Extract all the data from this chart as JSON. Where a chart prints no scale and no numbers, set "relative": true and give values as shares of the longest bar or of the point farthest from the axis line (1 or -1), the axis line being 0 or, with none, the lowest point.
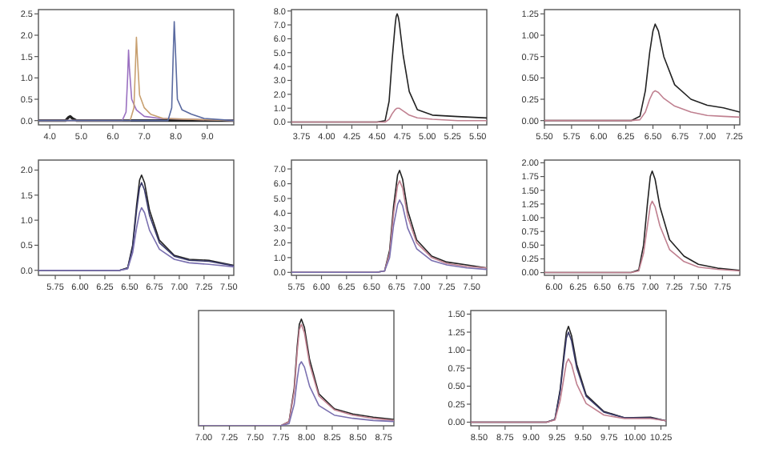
{
  "chart_data": [
    {
      "type": "line",
      "xlim": [
        3.64,
        9.84
      ],
      "xticks": [
        {
          "value": 4,
          "label": "4.0"
        },
        {
          "value": 5,
          "label": "5.0"
        },
        {
          "value": 6,
          "label": "6.0"
        },
        {
          "value": 7,
          "label": "7.0"
        },
        {
          "value": 8,
          "label": "8.0"
        },
        {
          "value": 9,
          "label": "9.0"
        }
      ],
      "ylim": [
        -0.1,
        2.6
      ],
      "yticks": [
        {
          "value": 0,
          "label": "0.0"
        },
        0.5,
        {
          "value": 1,
          "label": "1.0"
        },
        1.5,
        {
          "value": 2,
          "label": "2.0"
        },
        2.5
      ],
      "series": [
        {
          "color": "#222222",
          "x": [
            3.64,
            4.5,
            4.6,
            4.65,
            4.72,
            4.85,
            9.84
          ],
          "values": [
            0,
            0,
            0.08,
            0.1,
            0.05,
            0,
            0
          ]
        },
        {
          "color": "#9a70c0",
          "x": [
            3.64,
            6.3,
            6.42,
            6.47,
            6.5,
            6.53,
            6.6,
            6.75,
            7.0,
            7.5,
            9.84
          ],
          "values": [
            0,
            0,
            0.2,
            1.0,
            1.65,
            1.2,
            0.5,
            0.25,
            0.1,
            0.05,
            0
          ]
        },
        {
          "color": "#c8a070",
          "x": [
            3.64,
            6.55,
            6.67,
            6.72,
            6.75,
            6.78,
            6.85,
            7.0,
            7.2,
            7.6,
            9.84
          ],
          "values": [
            0,
            0,
            0.3,
            1.3,
            1.95,
            1.5,
            0.6,
            0.3,
            0.15,
            0.05,
            0
          ]
        },
        {
          "color": "#5a6aa0",
          "x": [
            3.64,
            7.75,
            7.87,
            7.92,
            7.95,
            7.98,
            8.05,
            8.2,
            8.5,
            8.9,
            9.84
          ],
          "values": [
            0,
            0,
            0.3,
            1.6,
            2.32,
            1.8,
            0.5,
            0.25,
            0.15,
            0.05,
            0
          ]
        }
      ]
    },
    {
      "type": "line",
      "xlim": [
        3.65,
        5.59
      ],
      "xticks": [
        3.75,
        {
          "value": 4,
          "label": "4.00"
        },
        4.25,
        {
          "value": 4.5,
          "label": "4.50"
        },
        4.75,
        {
          "value": 5,
          "label": "5.00"
        },
        5.25,
        {
          "value": 5.5,
          "label": "5.50"
        }
      ],
      "ylim": [
        -0.2,
        8.1
      ],
      "yticks": [
        {
          "value": 0,
          "label": "0.0"
        },
        {
          "value": 1,
          "label": "1.0"
        },
        {
          "value": 2,
          "label": "2.0"
        },
        {
          "value": 3,
          "label": "3.0"
        },
        {
          "value": 4,
          "label": "4.0"
        },
        {
          "value": 5,
          "label": "5.0"
        },
        {
          "value": 6,
          "label": "6.0"
        },
        {
          "value": 7,
          "label": "7.0"
        },
        {
          "value": 8,
          "label": "8.0"
        }
      ],
      "series": [
        {
          "color": "#222222",
          "x": [
            3.65,
            4.5,
            4.58,
            4.62,
            4.65,
            4.68,
            4.69,
            4.7,
            4.71,
            4.72,
            4.76,
            4.82,
            4.9,
            5.05,
            5.3,
            5.59
          ],
          "values": [
            0,
            0,
            0.1,
            1.5,
            4.5,
            7.0,
            7.6,
            7.8,
            7.6,
            7.2,
            4.8,
            2.2,
            0.9,
            0.5,
            0.4,
            0.3
          ]
        },
        {
          "color": "#c08090",
          "x": [
            3.65,
            4.5,
            4.58,
            4.62,
            4.65,
            4.68,
            4.7,
            4.72,
            4.76,
            4.82,
            4.9,
            5.05,
            5.3,
            5.59
          ],
          "values": [
            0,
            0,
            0,
            0.2,
            0.6,
            0.9,
            1.0,
            1.0,
            0.8,
            0.5,
            0.3,
            0.2,
            0.1,
            0.1
          ]
        }
      ]
    },
    {
      "type": "line",
      "xlim": [
        5.5,
        7.3
      ],
      "xticks": [
        {
          "value": 5.5,
          "label": "5.50"
        },
        5.75,
        {
          "value": 6,
          "label": "6.00"
        },
        6.25,
        {
          "value": 6.5,
          "label": "6.50"
        },
        6.75,
        {
          "value": 7,
          "label": "7.00"
        },
        7.25
      ],
      "ylim": [
        -0.05,
        1.3
      ],
      "yticks": [
        {
          "value": 0,
          "label": "0.00"
        },
        0.25,
        {
          "value": 0.5,
          "label": "0.50"
        },
        0.75,
        {
          "value": 1,
          "label": "1.00"
        },
        1.25
      ],
      "series": [
        {
          "color": "#222222",
          "x": [
            5.5,
            6.3,
            6.38,
            6.43,
            6.47,
            6.5,
            6.52,
            6.55,
            6.6,
            6.7,
            6.85,
            7.0,
            7.15,
            7.3
          ],
          "values": [
            0,
            0,
            0.05,
            0.35,
            0.8,
            1.05,
            1.13,
            1.05,
            0.75,
            0.42,
            0.25,
            0.18,
            0.15,
            0.1
          ]
        },
        {
          "color": "#c08090",
          "x": [
            5.5,
            6.3,
            6.38,
            6.43,
            6.47,
            6.5,
            6.52,
            6.55,
            6.6,
            6.7,
            6.85,
            7.0,
            7.15,
            7.3
          ],
          "values": [
            0,
            0,
            0.01,
            0.1,
            0.25,
            0.33,
            0.35,
            0.33,
            0.26,
            0.17,
            0.1,
            0.06,
            0.05,
            0.04
          ]
        }
      ]
    },
    {
      "type": "line",
      "xlim": [
        5.58,
        7.55
      ],
      "xticks": [
        5.75,
        {
          "value": 6,
          "label": "6.00"
        },
        6.25,
        {
          "value": 6.5,
          "label": "6.50"
        },
        6.75,
        {
          "value": 7,
          "label": "7.00"
        },
        7.25,
        {
          "value": 7.5,
          "label": "7.50"
        }
      ],
      "ylim": [
        -0.1,
        2.2
      ],
      "yticks": [
        {
          "value": 0,
          "label": "0.0"
        },
        0.5,
        {
          "value": 1,
          "label": "1.0"
        },
        1.5,
        {
          "value": 2,
          "label": "2.0"
        }
      ],
      "series": [
        {
          "color": "#222222",
          "x": [
            5.58,
            6.4,
            6.48,
            6.53,
            6.57,
            6.6,
            6.62,
            6.65,
            6.7,
            6.8,
            6.95,
            7.1,
            7.3,
            7.55
          ],
          "values": [
            0,
            0,
            0.05,
            0.5,
            1.3,
            1.8,
            1.9,
            1.75,
            1.2,
            0.6,
            0.3,
            0.22,
            0.2,
            0.1
          ]
        },
        {
          "color": "#3a3a6a",
          "x": [
            5.58,
            6.4,
            6.48,
            6.53,
            6.57,
            6.6,
            6.62,
            6.65,
            6.7,
            6.8,
            6.95,
            7.1,
            7.3,
            7.55
          ],
          "values": [
            0,
            0,
            0.04,
            0.45,
            1.2,
            1.65,
            1.75,
            1.6,
            1.1,
            0.55,
            0.28,
            0.2,
            0.18,
            0.09
          ]
        },
        {
          "color": "#7a70b0",
          "x": [
            5.58,
            6.4,
            6.48,
            6.53,
            6.57,
            6.6,
            6.62,
            6.65,
            6.7,
            6.8,
            6.95,
            7.1,
            7.3,
            7.55
          ],
          "values": [
            0,
            0,
            0.03,
            0.35,
            0.85,
            1.15,
            1.25,
            1.15,
            0.8,
            0.42,
            0.22,
            0.15,
            0.12,
            0.07
          ]
        }
      ]
    },
    {
      "type": "line",
      "xlim": [
        5.7,
        7.65
      ],
      "xticks": [
        5.75,
        {
          "value": 6,
          "label": "6.00"
        },
        6.25,
        {
          "value": 6.5,
          "label": "6.50"
        },
        6.75,
        {
          "value": 7,
          "label": "7.00"
        },
        7.25,
        {
          "value": 7.5,
          "label": "7.50"
        }
      ],
      "ylim": [
        -0.2,
        7.6
      ],
      "yticks": [
        {
          "value": 0,
          "label": "0.0"
        },
        {
          "value": 1,
          "label": "1.0"
        },
        {
          "value": 2,
          "label": "2.0"
        },
        {
          "value": 3,
          "label": "3.0"
        },
        {
          "value": 4,
          "label": "4.0"
        },
        {
          "value": 5,
          "label": "5.0"
        },
        {
          "value": 6,
          "label": "6.0"
        },
        {
          "value": 7,
          "label": "7.0"
        }
      ],
      "series": [
        {
          "color": "#222222",
          "x": [
            5.7,
            6.55,
            6.63,
            6.68,
            6.72,
            6.76,
            6.78,
            6.81,
            6.86,
            6.95,
            7.1,
            7.25,
            7.45,
            7.65
          ],
          "values": [
            0,
            0,
            0.1,
            1.5,
            4.5,
            6.6,
            6.9,
            6.3,
            4.2,
            2.2,
            1.1,
            0.7,
            0.5,
            0.3
          ]
        },
        {
          "color": "#c08090",
          "x": [
            5.7,
            6.55,
            6.63,
            6.68,
            6.72,
            6.76,
            6.78,
            6.81,
            6.86,
            6.95,
            7.1,
            7.25,
            7.45,
            7.65
          ],
          "values": [
            0,
            0,
            0.1,
            1.3,
            4.0,
            5.9,
            6.2,
            5.7,
            3.8,
            2.0,
            1.0,
            0.6,
            0.4,
            0.3
          ]
        },
        {
          "color": "#7a70b0",
          "x": [
            5.7,
            6.55,
            6.63,
            6.68,
            6.72,
            6.76,
            6.78,
            6.81,
            6.86,
            6.95,
            7.1,
            7.25,
            7.45,
            7.65
          ],
          "values": [
            0,
            0,
            0.1,
            1.0,
            3.2,
            4.6,
            4.9,
            4.5,
            3.0,
            1.6,
            0.8,
            0.5,
            0.3,
            0.2
          ]
        }
      ]
    },
    {
      "type": "line",
      "xlim": [
        5.9,
        7.93
      ],
      "xticks": [
        {
          "value": 6,
          "label": "6.00"
        },
        6.25,
        {
          "value": 6.5,
          "label": "6.50"
        },
        6.75,
        {
          "value": 7,
          "label": "7.00"
        },
        7.25,
        {
          "value": 7.5,
          "label": "7.50"
        },
        7.75
      ],
      "ylim": [
        -0.05,
        2.05
      ],
      "yticks": [
        {
          "value": 0,
          "label": "0.00"
        },
        0.25,
        {
          "value": 0.5,
          "label": "0.50"
        },
        0.75,
        {
          "value": 1,
          "label": "1.00"
        },
        1.25,
        {
          "value": 1.5,
          "label": "1.50"
        },
        1.75,
        {
          "value": 2,
          "label": "2.00"
        }
      ],
      "series": [
        {
          "color": "#222222",
          "x": [
            5.9,
            6.8,
            6.88,
            6.93,
            6.97,
            7.0,
            7.02,
            7.05,
            7.1,
            7.2,
            7.35,
            7.5,
            7.7,
            7.93
          ],
          "values": [
            0,
            0,
            0.05,
            0.5,
            1.25,
            1.75,
            1.85,
            1.7,
            1.2,
            0.6,
            0.3,
            0.15,
            0.08,
            0.04
          ]
        },
        {
          "color": "#c08090",
          "x": [
            5.9,
            6.8,
            6.88,
            6.93,
            6.97,
            7.0,
            7.02,
            7.05,
            7.1,
            7.2,
            7.35,
            7.5,
            7.7,
            7.93
          ],
          "values": [
            0,
            0,
            0.03,
            0.35,
            0.85,
            1.22,
            1.3,
            1.2,
            0.85,
            0.42,
            0.2,
            0.1,
            0.06,
            0.03
          ]
        }
      ]
    },
    {
      "type": "line",
      "relative": true,
      "xlim": [
        6.95,
        8.85
      ],
      "xticks": [
        {
          "value": 7,
          "label": "7.00"
        },
        7.25,
        {
          "value": 7.5,
          "label": "7.50"
        },
        7.75,
        {
          "value": 8,
          "label": "8.00"
        },
        8.25,
        {
          "value": 8.5,
          "label": "8.50"
        },
        8.75
      ],
      "series": [
        {
          "color": "#222222",
          "x": [
            6.95,
            7.75,
            7.83,
            7.88,
            7.91,
            7.93,
            7.95,
            7.98,
            8.03,
            8.12,
            8.27,
            8.45,
            8.65,
            8.85
          ],
          "values": [
            0,
            0,
            0.04,
            0.35,
            0.75,
            0.95,
            1,
            0.92,
            0.62,
            0.3,
            0.16,
            0.11,
            0.08,
            0.06
          ]
        },
        {
          "color": "#c08090",
          "x": [
            6.95,
            7.75,
            7.83,
            7.88,
            7.91,
            7.93,
            7.95,
            7.98,
            8.03,
            8.12,
            8.27,
            8.45,
            8.65,
            8.85
          ],
          "values": [
            0,
            0,
            0.04,
            0.32,
            0.7,
            0.9,
            0.95,
            0.87,
            0.58,
            0.28,
            0.15,
            0.1,
            0.07,
            0.05
          ]
        },
        {
          "color": "#7a70b0",
          "x": [
            6.95,
            7.75,
            7.83,
            7.88,
            7.91,
            7.93,
            7.95,
            7.98,
            8.03,
            8.12,
            8.27,
            8.45,
            8.65,
            8.85
          ],
          "values": [
            0,
            0,
            0.02,
            0.2,
            0.44,
            0.57,
            0.6,
            0.55,
            0.37,
            0.19,
            0.1,
            0.07,
            0.05,
            0.04
          ]
        }
      ]
    },
    {
      "type": "line",
      "xlim": [
        8.42,
        10.3
      ],
      "xticks": [
        {
          "value": 8.5,
          "label": "8.50"
        },
        8.75,
        {
          "value": 9,
          "label": "9.00"
        },
        9.25,
        {
          "value": 9.5,
          "label": "9.50"
        },
        9.75,
        {
          "value": 10,
          "label": "10.00"
        },
        10.25
      ],
      "ylim": [
        -0.05,
        1.55
      ],
      "yticks": [
        {
          "value": 0,
          "label": "0.00"
        },
        0.25,
        {
          "value": 0.5,
          "label": "0.50"
        },
        0.75,
        {
          "value": 1,
          "label": "1.00"
        },
        1.25,
        {
          "value": 1.5,
          "label": "1.50"
        }
      ],
      "series": [
        {
          "color": "#222222",
          "x": [
            8.42,
            9.15,
            9.23,
            9.28,
            9.32,
            9.34,
            9.36,
            9.39,
            9.44,
            9.53,
            9.7,
            9.9,
            10.15,
            10.3
          ],
          "values": [
            0,
            0,
            0.04,
            0.45,
            1.0,
            1.25,
            1.33,
            1.2,
            0.8,
            0.38,
            0.15,
            0.06,
            0.07,
            0.02
          ]
        },
        {
          "color": "#3a3a6a",
          "x": [
            8.42,
            9.15,
            9.23,
            9.28,
            9.32,
            9.34,
            9.36,
            9.39,
            9.44,
            9.53,
            9.7,
            9.9,
            10.15,
            10.3
          ],
          "values": [
            0,
            0,
            0.04,
            0.42,
            0.93,
            1.17,
            1.25,
            1.13,
            0.75,
            0.36,
            0.14,
            0.06,
            0.06,
            0.02
          ]
        },
        {
          "color": "#c08090",
          "x": [
            8.42,
            9.15,
            9.23,
            9.28,
            9.32,
            9.34,
            9.36,
            9.39,
            9.44,
            9.53,
            9.7,
            9.9,
            10.15,
            10.3
          ],
          "values": [
            0,
            0,
            0.03,
            0.3,
            0.65,
            0.82,
            0.88,
            0.8,
            0.53,
            0.26,
            0.1,
            0.05,
            0.05,
            0.02
          ]
        }
      ]
    }
  ]
}
